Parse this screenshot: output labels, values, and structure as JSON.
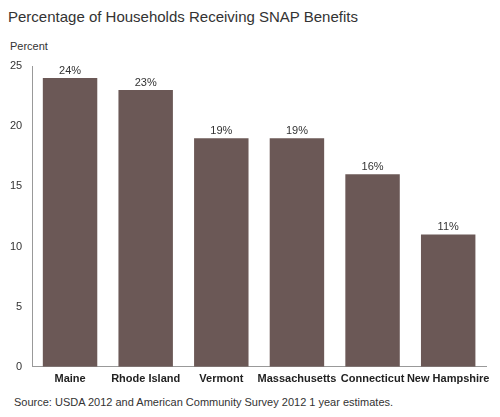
{
  "chart_data": {
    "type": "bar",
    "title": "Percentage of Households Receiving SNAP Benefits",
    "ylabel": "Percent",
    "source": "Source: USDA 2012 and American Community Survey 2012 1 year estimates.",
    "categories": [
      "Maine",
      "Rhode Island",
      "Vermont",
      "Massachusetts",
      "Connecticut",
      "New Hampshire"
    ],
    "values": [
      24,
      23,
      19,
      19,
      16,
      11
    ],
    "value_labels": [
      "24%",
      "23%",
      "19%",
      "19%",
      "16%",
      "11%"
    ],
    "data_labels": true,
    "color": "#6b5856",
    "ylim": [
      0,
      25
    ],
    "yticks": [
      0,
      5,
      10,
      15,
      20,
      25
    ],
    "grid": false
  }
}
